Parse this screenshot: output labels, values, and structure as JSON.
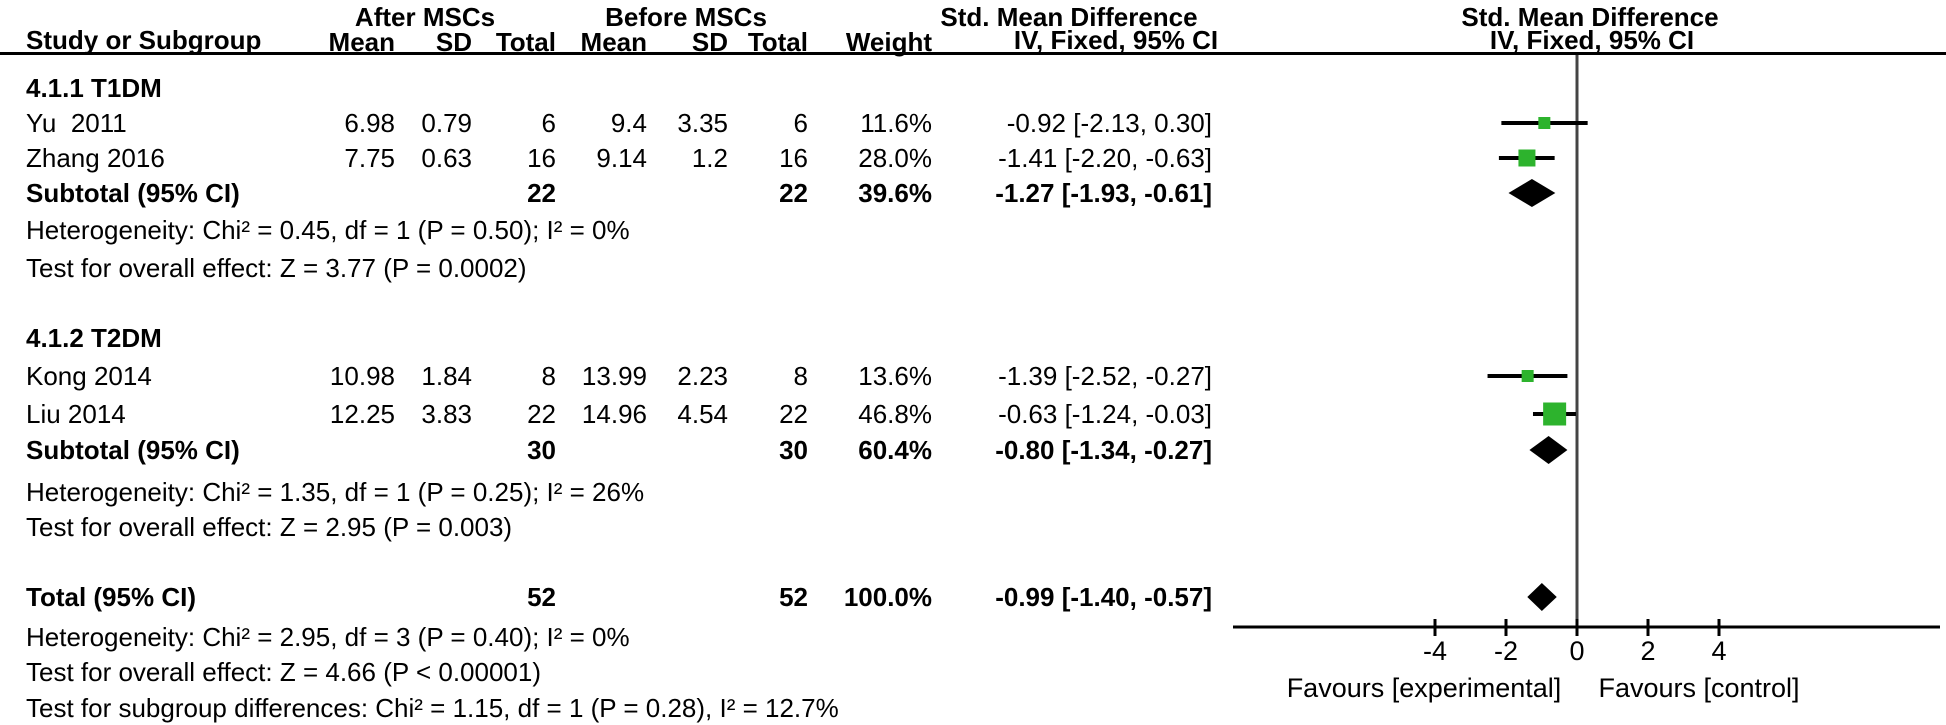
{
  "colors": {
    "marker_green": "#2db32d",
    "diamond_black": "#000000",
    "zero_line": "#444444",
    "axis_black": "#000000",
    "text": "#000000"
  },
  "header": {
    "group_after": "After MSCs",
    "group_before": "Before MSCs",
    "smd_numeric": "Std. Mean Difference",
    "smd_plot": "Std. Mean Difference",
    "col_study": "Study or Subgroup",
    "col_mean_a": "Mean",
    "col_sd_a": "SD",
    "col_total_a": "Total",
    "col_mean_b": "Mean",
    "col_sd_b": "SD",
    "col_total_b": "Total",
    "col_weight": "Weight",
    "ci_numeric": "IV, Fixed, 95% CI",
    "ci_plot": "IV, Fixed, 95% CI"
  },
  "rows": [
    {
      "type": "subgroup",
      "label": "4.1.1 T1DM"
    },
    {
      "type": "study",
      "label": "Yu  2011",
      "mean1": "6.98",
      "sd1": "0.79",
      "total1": "6",
      "mean2": "9.4",
      "sd2": "3.35",
      "total2": "6",
      "weight": "11.6%",
      "ci": "-0.92 [-2.13, 0.30]"
    },
    {
      "type": "study",
      "label": "Zhang 2016",
      "mean1": "7.75",
      "sd1": "0.63",
      "total1": "16",
      "mean2": "9.14",
      "sd2": "1.2",
      "total2": "16",
      "weight": "28.0%",
      "ci": "-1.41 [-2.20, -0.63]"
    },
    {
      "type": "subtotal",
      "label": "Subtotal (95% CI)",
      "total1": "22",
      "total2": "22",
      "weight": "39.6%",
      "ci": "-1.27 [-1.93, -0.61]"
    },
    {
      "type": "note",
      "label": "Heterogeneity: Chi² = 0.45, df = 1 (P = 0.50); I² = 0%"
    },
    {
      "type": "note",
      "label": "Test for overall effect: Z = 3.77 (P = 0.0002)"
    },
    {
      "type": "subgroup",
      "label": "4.1.2 T2DM"
    },
    {
      "type": "study",
      "label": "Kong 2014",
      "mean1": "10.98",
      "sd1": "1.84",
      "total1": "8",
      "mean2": "13.99",
      "sd2": "2.23",
      "total2": "8",
      "weight": "13.6%",
      "ci": "-1.39 [-2.52, -0.27]"
    },
    {
      "type": "study",
      "label": "Liu 2014",
      "mean1": "12.25",
      "sd1": "3.83",
      "total1": "22",
      "mean2": "14.96",
      "sd2": "4.54",
      "total2": "22",
      "weight": "46.8%",
      "ci": "-0.63 [-1.24, -0.03]"
    },
    {
      "type": "subtotal",
      "label": "Subtotal (95% CI)",
      "total1": "30",
      "total2": "30",
      "weight": "60.4%",
      "ci": "-0.80 [-1.34, -0.27]"
    },
    {
      "type": "note",
      "label": "Heterogeneity: Chi² = 1.35, df = 1 (P = 0.25); I² = 26%"
    },
    {
      "type": "note",
      "label": "Test for overall effect: Z = 2.95 (P = 0.003)"
    },
    {
      "type": "total",
      "label": "Total (95% CI)",
      "total1": "52",
      "total2": "52",
      "weight": "100.0%",
      "ci": "-0.99 [-1.40, -0.57]"
    },
    {
      "type": "note",
      "label": "Heterogeneity: Chi² = 2.95, df = 3 (P = 0.40); I² = 0%"
    },
    {
      "type": "note",
      "label": "Test for overall effect: Z = 4.66 (P < 0.00001)"
    },
    {
      "type": "note",
      "label": "Test for subgroup differences: Chi² = 1.15, df = 1 (P = 0.28), I² = 12.7%"
    }
  ],
  "axis": {
    "tick_labels": [
      "-4",
      "-2",
      "0",
      "2",
      "4"
    ],
    "favours_left": "Favours [experimental]",
    "favours_right": "Favours [control]"
  },
  "chart_data": {
    "type": "forest",
    "effect_measure": "Std. Mean Difference",
    "method": "IV, Fixed, 95% CI",
    "comparison_groups": [
      "After MSCs",
      "Before MSCs"
    ],
    "ticks": [
      -4,
      -2,
      0,
      2,
      4
    ],
    "xlim": [
      -9.7,
      10.2
    ],
    "studies": [
      {
        "subgroup": "4.1.1 T1DM",
        "name": "Yu 2011",
        "est": -0.92,
        "lo": -2.13,
        "hi": 0.3,
        "weight_pct": 11.6
      },
      {
        "subgroup": "4.1.1 T1DM",
        "name": "Zhang 2016",
        "est": -1.41,
        "lo": -2.2,
        "hi": -0.63,
        "weight_pct": 28.0
      },
      {
        "subgroup": "4.1.2 T2DM",
        "name": "Kong 2014",
        "est": -1.39,
        "lo": -2.52,
        "hi": -0.27,
        "weight_pct": 13.6
      },
      {
        "subgroup": "4.1.2 T2DM",
        "name": "Liu 2014",
        "est": -0.63,
        "lo": -1.24,
        "hi": -0.03,
        "weight_pct": 46.8
      }
    ],
    "subtotals": [
      {
        "subgroup": "4.1.1 T1DM",
        "est": -1.27,
        "lo": -1.93,
        "hi": -0.61,
        "weight_pct": 39.6,
        "n_after": 22,
        "n_before": 22
      },
      {
        "subgroup": "4.1.2 T2DM",
        "est": -0.8,
        "lo": -1.34,
        "hi": -0.27,
        "weight_pct": 60.4,
        "n_after": 30,
        "n_before": 30
      }
    ],
    "total": {
      "est": -0.99,
      "lo": -1.4,
      "hi": -0.57,
      "weight_pct": 100.0,
      "n_after": 52,
      "n_before": 52
    },
    "heterogeneity": {
      "subgroup1": "Chi² = 0.45, df = 1 (P = 0.50); I² = 0%",
      "subgroup2": "Chi² = 1.35, df = 1 (P = 0.25); I² = 26%",
      "total": "Chi² = 2.95, df = 3 (P = 0.40); I² = 0%",
      "subgroup_differences": "Chi² = 1.15, df = 1 (P = 0.28), I² = 12.7%"
    },
    "overall_effect": {
      "subgroup1": "Z = 3.77 (P = 0.0002)",
      "subgroup2": "Z = 2.95 (P = 0.003)",
      "total": "Z = 4.66 (P < 0.00001)"
    }
  }
}
